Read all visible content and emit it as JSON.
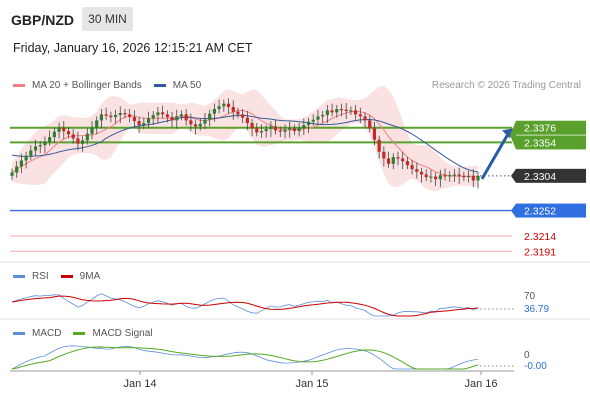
{
  "header": {
    "symbol": "GBP/NZD",
    "timeframe": "30 MIN",
    "datetime": "Friday, January 16, 2026 12:15:21 AM CET"
  },
  "legend": {
    "ma20_label": "MA 20 + Bollinger Bands",
    "ma50_label": "MA 50",
    "ma20_color": "#f08080",
    "ma50_color": "#335c99",
    "copyright": "Research © 2026 Trading Central"
  },
  "rsi_legend": {
    "rsi_label": "RSI",
    "ma_label": "9MA",
    "rsi_color": "#5b8ed6",
    "ma_color": "#cc0000"
  },
  "macd_legend": {
    "macd_label": "MACD",
    "signal_label": "MACD Signal",
    "macd_color": "#5b8ed6",
    "signal_color": "#55aa22"
  },
  "chart_data": {
    "type": "candlestick",
    "y_range": [
      2.3175,
      2.3425
    ],
    "x_labels": [
      "Jan 14",
      "Jan 15",
      "Jan 16"
    ],
    "levels": [
      {
        "label": "2.3376",
        "value": 2.3376,
        "style": "resistance",
        "color": "#5aa02c"
      },
      {
        "label": "2.3354",
        "value": 2.3354,
        "style": "resistance",
        "color": "#5aa02c"
      },
      {
        "label": "2.3304",
        "value": 2.3304,
        "style": "last",
        "color": "#333333"
      },
      {
        "label": "2.3252",
        "value": 2.3252,
        "style": "pivot",
        "color": "#2f6fe0"
      },
      {
        "label": "2.3214",
        "value": 2.3214,
        "style": "support",
        "color": "#cc0000"
      },
      {
        "label": "2.3191",
        "value": 2.3191,
        "style": "support",
        "color": "#cc0000"
      }
    ],
    "close_series": [
      2.3309,
      2.3318,
      2.3327,
      2.3334,
      2.3342,
      2.3348,
      2.335,
      2.3355,
      2.3362,
      2.337,
      2.3376,
      2.3371,
      2.3366,
      2.336,
      2.3352,
      2.3357,
      2.3367,
      2.3376,
      2.3387,
      2.3396,
      2.3394,
      2.3392,
      2.3395,
      2.3398,
      2.3396,
      2.3392,
      2.3386,
      2.338,
      2.3383,
      2.339,
      2.3395,
      2.3399,
      2.3396,
      2.3392,
      2.3387,
      2.3393,
      2.3396,
      2.3387,
      2.3381,
      2.3378,
      2.3382,
      2.3388,
      2.3397,
      2.3404,
      2.3408,
      2.3412,
      2.3407,
      2.34,
      2.3396,
      2.3391,
      2.3383,
      2.3375,
      2.3369,
      2.3371,
      2.3374,
      2.3378,
      2.3372,
      2.337,
      2.3373,
      2.3375,
      2.3371,
      2.3375,
      2.338,
      2.3385,
      2.3388,
      2.3393,
      2.3395,
      2.3402,
      2.3399,
      2.3404,
      2.3403,
      2.3401,
      2.3402,
      2.3396,
      2.3393,
      2.3387,
      2.3375,
      2.3358,
      2.334,
      2.333,
      2.3322,
      2.3332,
      2.333,
      2.3326,
      2.332,
      2.3314,
      2.331,
      2.3306,
      2.3302,
      2.3303,
      2.3299,
      2.3305,
      2.3303,
      2.3305,
      2.3306,
      2.3304,
      2.3302,
      2.3304,
      2.3297,
      2.3304
    ],
    "ma20_band": {
      "upper": 2.3418,
      "lower": 2.329
    },
    "ma50_start": 2.3335,
    "forecast": {
      "from": 2.3304,
      "to": 2.3354
    },
    "rsi": {
      "label": "70",
      "value_label": "36.79",
      "value": 36.79
    },
    "macd": {
      "zero_label": "0",
      "value_label": "-0.00",
      "value": -0.0
    }
  }
}
